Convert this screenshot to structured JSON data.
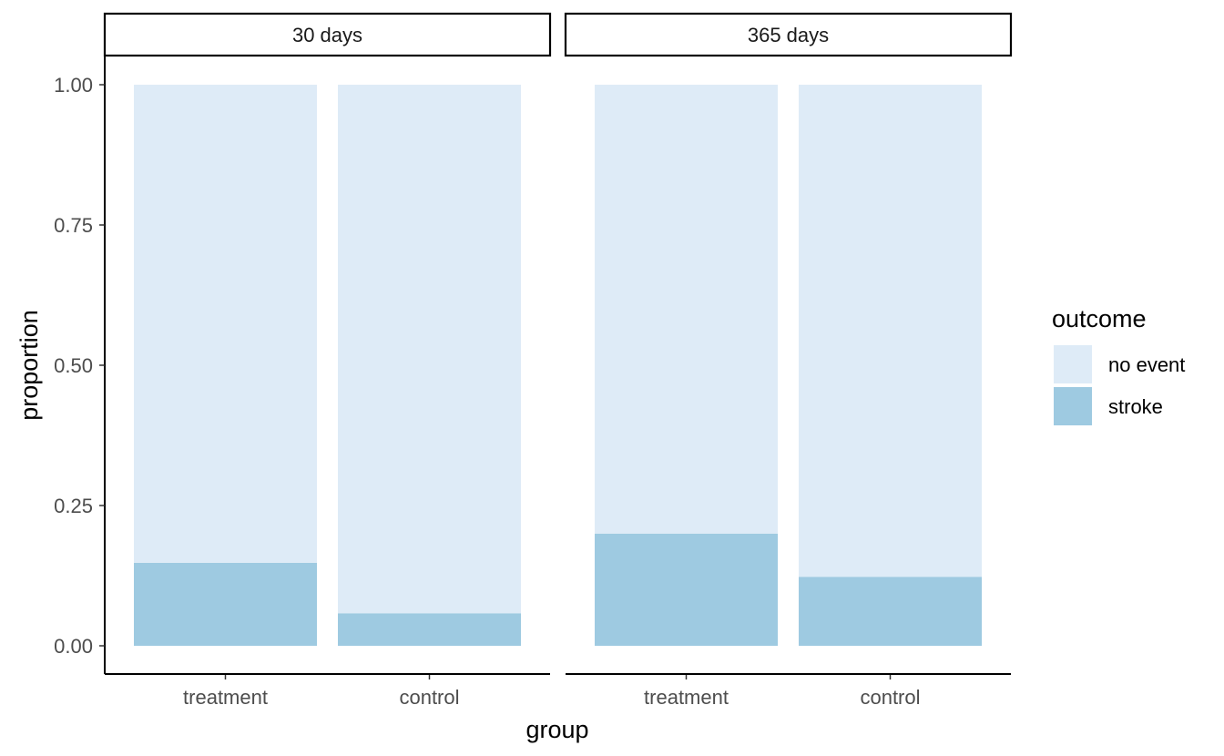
{
  "chart_data": {
    "type": "bar",
    "stacked": true,
    "xlabel": "group",
    "ylabel": "proportion",
    "ylim": [
      0,
      1
    ],
    "yticks": [
      "0.00",
      "0.25",
      "0.50",
      "0.75",
      "1.00"
    ],
    "ytick_values": [
      0,
      0.25,
      0.5,
      0.75,
      1.0
    ],
    "categories": [
      "treatment",
      "control"
    ],
    "facets": [
      {
        "label": "30 days",
        "series": [
          {
            "name": "stroke",
            "values": [
              0.148,
              0.058
            ]
          },
          {
            "name": "no event",
            "values": [
              0.852,
              0.942
            ]
          }
        ]
      },
      {
        "label": "365 days",
        "series": [
          {
            "name": "stroke",
            "values": [
              0.2,
              0.123
            ]
          },
          {
            "name": "no event",
            "values": [
              0.8,
              0.877
            ]
          }
        ]
      }
    ],
    "legend": {
      "title": "outcome",
      "position": "right",
      "entries": [
        {
          "label": "no event",
          "color": "#deebf7"
        },
        {
          "label": "stroke",
          "color": "#9ecae1"
        }
      ]
    },
    "colors": {
      "no event": "#deebf7",
      "stroke": "#9ecae1"
    },
    "grid": false
  }
}
